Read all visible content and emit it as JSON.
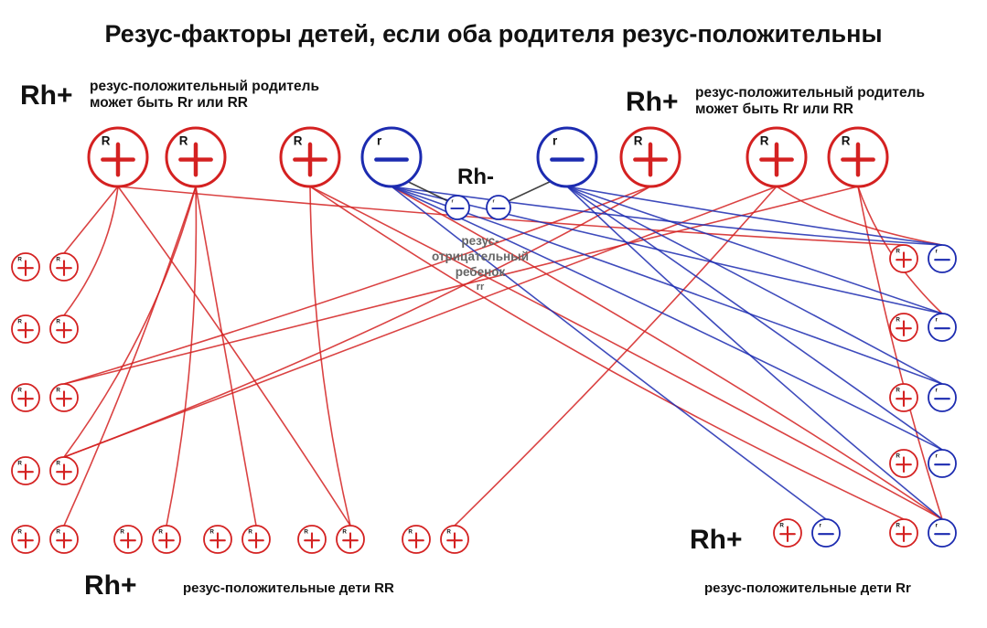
{
  "title": "Резус-факторы детей, если оба родителя резус-положительны",
  "parent_left": {
    "tag": "Rh+",
    "note_line1": "резус-положительный родитель",
    "note_line2": "может быть Rr или RR"
  },
  "parent_right": {
    "tag": "Rh+",
    "note_line1": "резус-положительный родитель",
    "note_line2": "может быть Rr или RR"
  },
  "negative_child": {
    "tag": "Rh-",
    "line1": "резус-",
    "line2": "отрицательный",
    "line3": "ребенок",
    "genotype": "rr"
  },
  "children_rr": {
    "tag": "Rh+",
    "caption": "резус-положительные дети RR"
  },
  "children_rr_het": {
    "tag": "Rh+",
    "caption": "резус-положительные дети Rr"
  },
  "allele_labels": {
    "dominant": "R",
    "recessive": "r"
  },
  "colors": {
    "dominant": "#d42121",
    "recessive": "#1c2bb0",
    "text": "#111111",
    "note": "#666666"
  }
}
